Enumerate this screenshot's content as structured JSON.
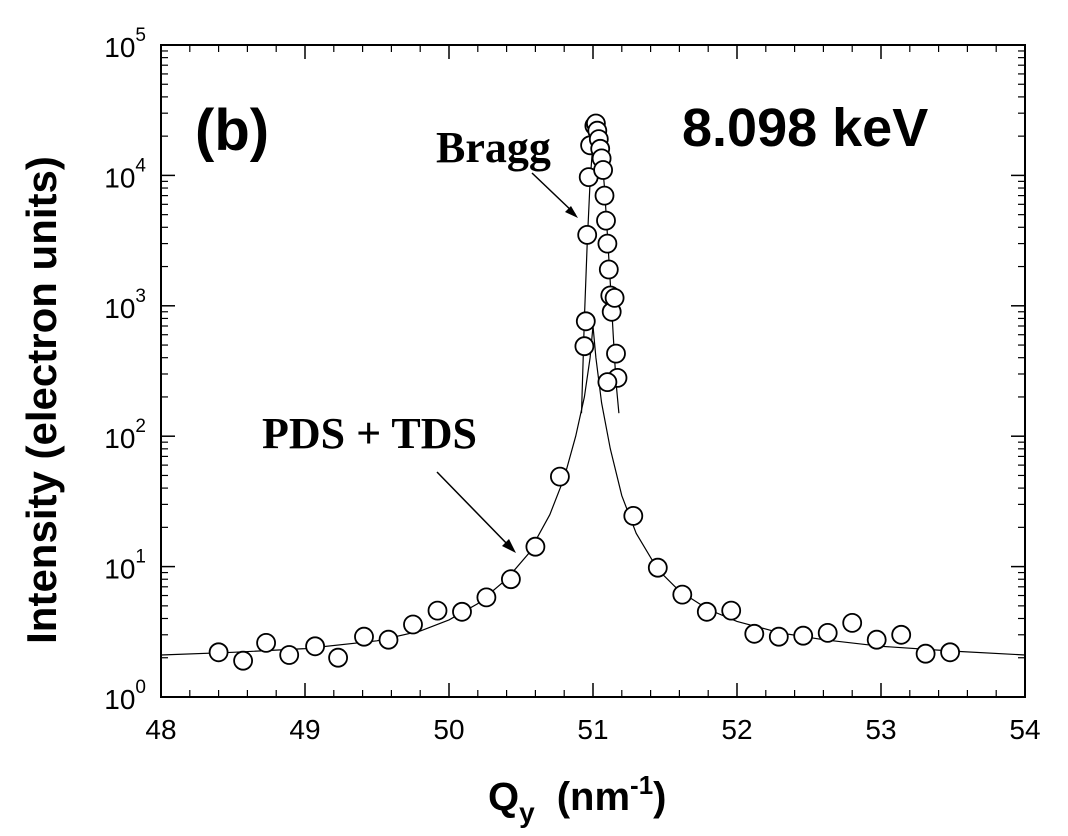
{
  "chart_data": {
    "type": "scatter",
    "panel_label": "(b)",
    "energy_label": "8.098 keV",
    "xlabel": {
      "main": "Q",
      "sub": "y",
      "unit_pre": "(nm",
      "unit_sup": "-1",
      "unit_post": ")"
    },
    "ylabel": "Intensity (electron units)",
    "xlim": [
      48,
      54
    ],
    "ylim": [
      1,
      100000
    ],
    "yscale": "log",
    "x_ticks": [
      "48",
      "49",
      "50",
      "51",
      "52",
      "53",
      "54"
    ],
    "y_ticks": [
      {
        "base": "10",
        "exp": "0"
      },
      {
        "base": "10",
        "exp": "1"
      },
      {
        "base": "10",
        "exp": "2"
      },
      {
        "base": "10",
        "exp": "3"
      },
      {
        "base": "10",
        "exp": "4"
      },
      {
        "base": "10",
        "exp": "5"
      }
    ],
    "grid": false,
    "annotations": [
      {
        "text": "Bragg"
      },
      {
        "text": "PDS + TDS"
      }
    ],
    "series": [
      {
        "marker": "open-circle",
        "points": [
          [
            48.4,
            2.2
          ],
          [
            48.57,
            1.9
          ],
          [
            48.73,
            2.6
          ],
          [
            48.89,
            2.1
          ],
          [
            49.07,
            2.45
          ],
          [
            49.23,
            2.0
          ],
          [
            49.41,
            2.9
          ],
          [
            49.58,
            2.75
          ],
          [
            49.75,
            3.6
          ],
          [
            49.92,
            4.6
          ],
          [
            50.09,
            4.5
          ],
          [
            50.26,
            5.8
          ],
          [
            50.43,
            8.0
          ],
          [
            50.6,
            14.2
          ],
          [
            50.77,
            49
          ],
          [
            50.94,
            490
          ],
          [
            50.95,
            760
          ],
          [
            50.96,
            3500
          ],
          [
            50.97,
            9700
          ],
          [
            50.98,
            17000
          ],
          [
            51.01,
            24000
          ],
          [
            51.02,
            25000
          ],
          [
            51.03,
            22000
          ],
          [
            51.04,
            19000
          ],
          [
            51.05,
            16000
          ],
          [
            51.06,
            13500
          ],
          [
            51.07,
            11000
          ],
          [
            51.08,
            7000
          ],
          [
            51.09,
            4500
          ],
          [
            51.1,
            3000
          ],
          [
            51.11,
            1900
          ],
          [
            51.12,
            1200
          ],
          [
            51.13,
            900
          ],
          [
            51.15,
            1150
          ],
          [
            51.16,
            430
          ],
          [
            51.17,
            280
          ],
          [
            51.1,
            260
          ],
          [
            51.28,
            24.5
          ],
          [
            51.45,
            9.8
          ],
          [
            51.62,
            6.1
          ],
          [
            51.79,
            4.5
          ],
          [
            51.96,
            4.6
          ],
          [
            52.12,
            3.05
          ],
          [
            52.29,
            2.9
          ],
          [
            52.46,
            2.95
          ],
          [
            52.63,
            3.1
          ],
          [
            52.8,
            3.7
          ],
          [
            52.97,
            2.75
          ],
          [
            53.14,
            3.0
          ],
          [
            53.31,
            2.15
          ],
          [
            53.48,
            2.2
          ]
        ]
      },
      {
        "name": "",
        "line": "pds-tds-fit",
        "points": [
          [
            48.0,
            2.1
          ],
          [
            48.5,
            2.2
          ],
          [
            49.0,
            2.35
          ],
          [
            49.5,
            2.7
          ],
          [
            49.8,
            3.2
          ],
          [
            50.0,
            3.9
          ],
          [
            50.2,
            5.2
          ],
          [
            50.4,
            8.0
          ],
          [
            50.55,
            12.5
          ],
          [
            50.7,
            25
          ],
          [
            50.8,
            48
          ],
          [
            50.88,
            100
          ],
          [
            50.94,
            200
          ],
          [
            50.98,
            400
          ],
          [
            51.0,
            700
          ],
          [
            51.02,
            400
          ],
          [
            51.06,
            180
          ],
          [
            51.12,
            80
          ],
          [
            51.2,
            35
          ],
          [
            51.3,
            18
          ],
          [
            51.45,
            9.5
          ],
          [
            51.6,
            6.5
          ],
          [
            51.8,
            4.7
          ],
          [
            52.0,
            3.8
          ],
          [
            52.3,
            3.1
          ],
          [
            52.6,
            2.75
          ],
          [
            53.0,
            2.45
          ],
          [
            53.5,
            2.25
          ],
          [
            54.0,
            2.1
          ]
        ]
      },
      {
        "name": "",
        "line": "bragg-peak-fit",
        "points": [
          [
            50.92,
            150
          ],
          [
            50.94,
            800
          ],
          [
            50.96,
            3000
          ],
          [
            50.98,
            9000
          ],
          [
            51.0,
            18000
          ],
          [
            51.02,
            24000
          ],
          [
            51.04,
            22000
          ],
          [
            51.06,
            15000
          ],
          [
            51.08,
            8000
          ],
          [
            51.1,
            3500
          ],
          [
            51.12,
            1500
          ],
          [
            51.14,
            600
          ],
          [
            51.16,
            260
          ],
          [
            51.18,
            150
          ]
        ]
      }
    ]
  }
}
